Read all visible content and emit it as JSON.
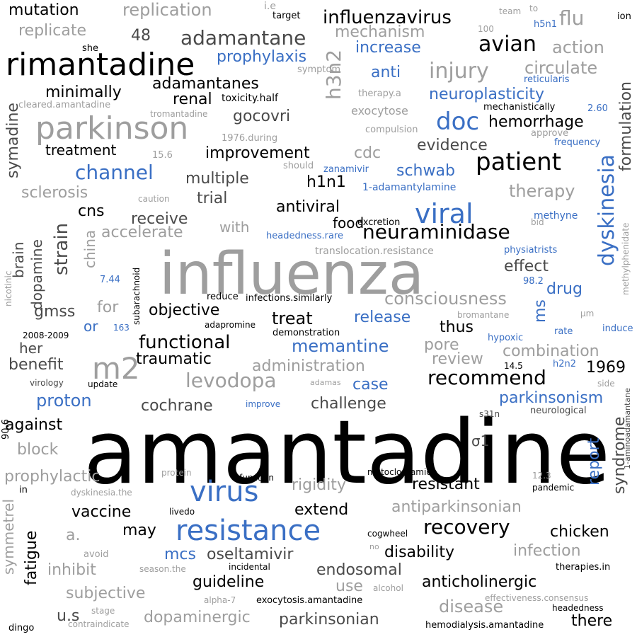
{
  "palette": {
    "black": "#000000",
    "gray": "#9e9e9e",
    "blue": "#3a6fc4",
    "dark": "#4a4a4a"
  },
  "words": [
    {
      "text": "amantadine"
    },
    {
      "text": "influenza"
    },
    {
      "text": "rimantadine"
    },
    {
      "text": "parkinson"
    },
    {
      "text": "virus"
    },
    {
      "text": "resistance"
    },
    {
      "text": "m2"
    },
    {
      "text": "viral"
    },
    {
      "text": "patient"
    },
    {
      "text": "dyskinesia"
    },
    {
      "text": "h3n2"
    },
    {
      "text": "doc"
    },
    {
      "text": "influenzavirus"
    },
    {
      "text": "adamantane"
    },
    {
      "text": "avian"
    },
    {
      "text": "flu"
    },
    {
      "text": "neuraminidase"
    },
    {
      "text": "levodopa"
    },
    {
      "text": "injury"
    },
    {
      "text": "channel"
    },
    {
      "text": "recommend"
    },
    {
      "text": "recovery"
    },
    {
      "text": "functional"
    },
    {
      "text": "memantine"
    },
    {
      "text": "consciousness"
    },
    {
      "text": "mutation"
    },
    {
      "text": "replication"
    },
    {
      "text": "replicate"
    },
    {
      "text": "mechanism"
    },
    {
      "text": "increase"
    },
    {
      "text": "prophylaxis"
    },
    {
      "text": "anti"
    },
    {
      "text": "circulate"
    },
    {
      "text": "action"
    },
    {
      "text": "adamantanes"
    },
    {
      "text": "minimally"
    },
    {
      "text": "renal"
    },
    {
      "text": "neuroplasticity"
    },
    {
      "text": "gocovri"
    },
    {
      "text": "hemorrhage"
    },
    {
      "text": "evidence"
    },
    {
      "text": "treatment"
    },
    {
      "text": "improvement"
    },
    {
      "text": "cdc"
    },
    {
      "text": "schwab"
    },
    {
      "text": "therapy"
    },
    {
      "text": "multiple"
    },
    {
      "text": "h1n1"
    },
    {
      "text": "sclerosis"
    },
    {
      "text": "trial"
    },
    {
      "text": "cns"
    },
    {
      "text": "antiviral"
    },
    {
      "text": "receive"
    },
    {
      "text": "food"
    },
    {
      "text": "accelerate"
    },
    {
      "text": "with"
    },
    {
      "text": "effect"
    },
    {
      "text": "drug"
    },
    {
      "text": "objective"
    },
    {
      "text": "treat"
    },
    {
      "text": "release"
    },
    {
      "text": "gmss"
    },
    {
      "text": "for"
    },
    {
      "text": "thus"
    },
    {
      "text": "her"
    },
    {
      "text": "pore"
    },
    {
      "text": "combination"
    },
    {
      "text": "benefit"
    },
    {
      "text": "traumatic"
    },
    {
      "text": "administration"
    },
    {
      "text": "review"
    },
    {
      "text": "1969"
    },
    {
      "text": "case"
    },
    {
      "text": "parkinsonism"
    },
    {
      "text": "proton"
    },
    {
      "text": "cochrane"
    },
    {
      "text": "challenge"
    },
    {
      "text": "against"
    },
    {
      "text": "block"
    },
    {
      "text": "σ1"
    },
    {
      "text": "report"
    },
    {
      "text": "syndrome"
    },
    {
      "text": "prophylactic"
    },
    {
      "text": "rigidity"
    },
    {
      "text": "resistant"
    },
    {
      "text": "vaccine"
    },
    {
      "text": "extend"
    },
    {
      "text": "antiparkinsonian"
    },
    {
      "text": "may"
    },
    {
      "text": "a."
    },
    {
      "text": "chicken"
    },
    {
      "text": "disability"
    },
    {
      "text": "infection"
    },
    {
      "text": "mcs"
    },
    {
      "text": "oseltamivir"
    },
    {
      "text": "inhibit"
    },
    {
      "text": "endosomal"
    },
    {
      "text": "guideline"
    },
    {
      "text": "use"
    },
    {
      "text": "anticholinergic"
    },
    {
      "text": "subjective"
    },
    {
      "text": "disease"
    },
    {
      "text": "u.s"
    },
    {
      "text": "dopaminergic"
    },
    {
      "text": "parkinsonian"
    },
    {
      "text": "there"
    },
    {
      "text": "fatigue"
    },
    {
      "text": "symmetrel"
    },
    {
      "text": "symadine"
    },
    {
      "text": "strain"
    },
    {
      "text": "china"
    },
    {
      "text": "brain"
    },
    {
      "text": "dopamine"
    },
    {
      "text": "formulation"
    },
    {
      "text": "ms"
    },
    {
      "text": "or"
    },
    {
      "text": "48"
    },
    {
      "text": "i.e"
    },
    {
      "text": "target"
    },
    {
      "text": "team"
    },
    {
      "text": "to"
    },
    {
      "text": "100"
    },
    {
      "text": "h5n1"
    },
    {
      "text": "ion"
    },
    {
      "text": "she"
    },
    {
      "text": "symptom"
    },
    {
      "text": "therapy.a"
    },
    {
      "text": "reticularis"
    },
    {
      "text": "toxicity.half"
    },
    {
      "text": "cleared.amantadine"
    },
    {
      "text": "tromantadine"
    },
    {
      "text": "exocytose"
    },
    {
      "text": "mechanistically"
    },
    {
      "text": "2.60"
    },
    {
      "text": "compulsion"
    },
    {
      "text": "approve"
    },
    {
      "text": "1976.during"
    },
    {
      "text": "frequency"
    },
    {
      "text": "15.6"
    },
    {
      "text": "should"
    },
    {
      "text": "zanamivir"
    },
    {
      "text": "1-adamantylamine"
    },
    {
      "text": "caution"
    },
    {
      "text": "methyne"
    },
    {
      "text": "bid"
    },
    {
      "text": "excretion"
    },
    {
      "text": "headedness.rare"
    },
    {
      "text": "translocation.resistance"
    },
    {
      "text": "physiatrists"
    },
    {
      "text": "methylphenidate"
    },
    {
      "text": "7.44"
    },
    {
      "text": "98.2"
    },
    {
      "text": "reduce"
    },
    {
      "text": "infections.similarly"
    },
    {
      "text": "subarachnoid"
    },
    {
      "text": "nicotinic"
    },
    {
      "text": "bromantane"
    },
    {
      "text": "163"
    },
    {
      "text": "µm"
    },
    {
      "text": "adapromine"
    },
    {
      "text": "demonstration"
    },
    {
      "text": "hypoxic"
    },
    {
      "text": "rate"
    },
    {
      "text": "induce"
    },
    {
      "text": "2008-2009"
    },
    {
      "text": "14.5"
    },
    {
      "text": "h2n2"
    },
    {
      "text": "virology"
    },
    {
      "text": "update"
    },
    {
      "text": "adamas"
    },
    {
      "text": "side"
    },
    {
      "text": "90.6"
    },
    {
      "text": "improve"
    },
    {
      "text": "s31n"
    },
    {
      "text": "neurological"
    },
    {
      "text": "1-aminoadamantane"
    },
    {
      "text": "protein"
    },
    {
      "text": "function"
    },
    {
      "text": "metoclopramide"
    },
    {
      "text": "12.3"
    },
    {
      "text": "pandemic"
    },
    {
      "text": "in"
    },
    {
      "text": "dyskinesia.the"
    },
    {
      "text": "livedo"
    },
    {
      "text": "cogwheel"
    },
    {
      "text": "no"
    },
    {
      "text": "avoid"
    },
    {
      "text": "incidental"
    },
    {
      "text": "season.the"
    },
    {
      "text": "therapies.in"
    },
    {
      "text": "alcohol"
    },
    {
      "text": "effectiveness.consensus"
    },
    {
      "text": "alpha-7"
    },
    {
      "text": "exocytosis.amantadine"
    },
    {
      "text": "stage"
    },
    {
      "text": "headedness"
    },
    {
      "text": "dingo"
    },
    {
      "text": "contraindicate"
    },
    {
      "text": "hemodialysis.amantadine"
    }
  ]
}
